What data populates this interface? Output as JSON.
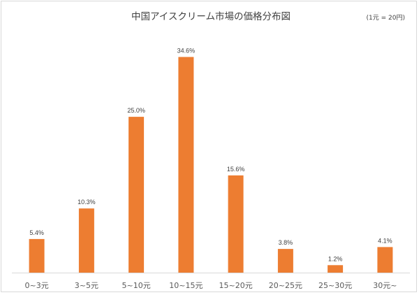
{
  "chart_data": {
    "type": "bar",
    "title": "中国アイスクリーム市場の価格分布図",
    "note": "(1元 = 20円)",
    "categories": [
      "0~3元",
      "3~5元",
      "5~10元",
      "10~15元",
      "15~20元",
      "20~25元",
      "25~30元",
      "30元~"
    ],
    "values": [
      5.4,
      10.3,
      25.0,
      34.6,
      15.6,
      3.8,
      1.2,
      4.1
    ],
    "value_labels": [
      "5.4%",
      "10.3%",
      "25.0%",
      "34.6%",
      "15.6%",
      "3.8%",
      "1.2%",
      "4.1%"
    ],
    "unit": "%",
    "xlabel": "",
    "ylabel": "",
    "ylim": [
      0,
      36
    ],
    "grid": false,
    "legend": "none",
    "bar_color": "#ED7D31",
    "axis_color": "#d9d9d9"
  }
}
